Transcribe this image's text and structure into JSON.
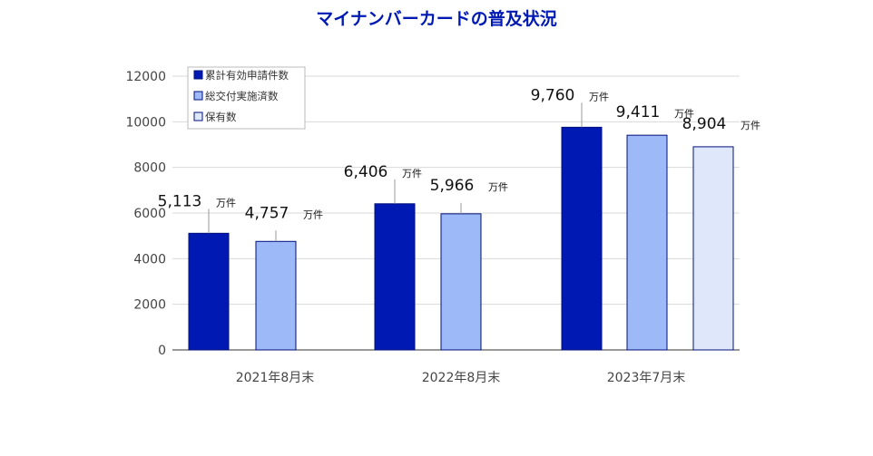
{
  "chart_data": {
    "type": "bar",
    "title": "マイナンバーカードの普及状況",
    "categories": [
      "2021年8月末",
      "2022年8月末",
      "2023年7月末"
    ],
    "series": [
      {
        "name": "累計有効申請件数",
        "values": [
          5113,
          6406,
          9760
        ],
        "color": "#0019b3"
      },
      {
        "name": "総交付実施済数",
        "values": [
          4757,
          5966,
          9411
        ],
        "color": "#9db9f7"
      },
      {
        "name": "保有数",
        "values": [
          null,
          null,
          8904
        ],
        "color": "#dfe7fb"
      }
    ],
    "data_labels": [
      [
        "5,113",
        "6,406",
        "9,760"
      ],
      [
        "4,757",
        "5,966",
        "9,411"
      ],
      [
        null,
        null,
        "8,904"
      ]
    ],
    "unit_label": "万件",
    "yticks": [
      "0",
      "2000",
      "4000",
      "6000",
      "8000",
      "10000",
      "12000"
    ],
    "ylim": [
      0,
      12000
    ],
    "grid": true,
    "legend": "top-left",
    "bar_border_color": "#00107a",
    "title_color": "#0019b3"
  }
}
